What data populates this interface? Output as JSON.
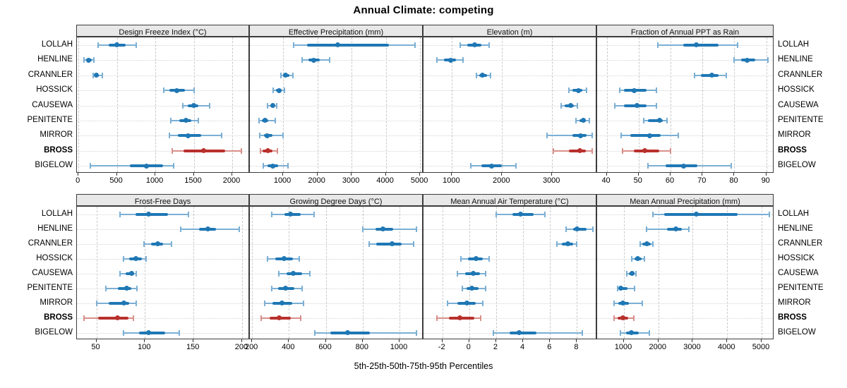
{
  "title": "Annual Climate: competing",
  "xlabel": "5th-25th-50th-75th-95th Percentiles",
  "sites": [
    "LOLLAH",
    "HENLINE",
    "CRANNLER",
    "HOSSICK",
    "CAUSEWA",
    "PENITENTE",
    "MIRROR",
    "BROSS",
    "BIGELOW"
  ],
  "highlight_site": "BROSS",
  "colors": {
    "normal": "#1f77b4",
    "normal_light": "#7bafd4",
    "highlight": "#b8302c",
    "highlight_light": "#d98f8a",
    "strip_bg": "#e8e8e8",
    "panel_border": "#3c3c3c",
    "grid": "#c9c9c9"
  },
  "chart_data": [
    {
      "type": "percentile-dotplot",
      "title": "Design Freeze Index (°C)",
      "row": 0,
      "col": 0,
      "xlim": [
        -20,
        2230
      ],
      "ticks": [
        0,
        500,
        1000,
        1500,
        2000
      ],
      "percentiles": [
        "5th",
        "25th",
        "50th",
        "75th",
        "95th"
      ],
      "values": [
        [
          260,
          390,
          500,
          610,
          750
        ],
        [
          70,
          100,
          135,
          170,
          200
        ],
        [
          190,
          210,
          235,
          265,
          310
        ],
        [
          1110,
          1180,
          1280,
          1385,
          1500
        ],
        [
          1360,
          1420,
          1500,
          1560,
          1710
        ],
        [
          1205,
          1310,
          1400,
          1465,
          1555
        ],
        [
          1180,
          1290,
          1430,
          1600,
          1865
        ],
        [
          1220,
          1370,
          1625,
          1910,
          2120
        ],
        [
          150,
          670,
          880,
          1100,
          1235
        ]
      ]
    },
    {
      "type": "percentile-dotplot",
      "title": "Effective Precipitation (mm)",
      "row": 0,
      "col": 1,
      "xlim": [
        30,
        5100
      ],
      "ticks": [
        1000,
        2000,
        3000,
        4000,
        5000
      ],
      "percentiles": [
        "5th",
        "25th",
        "50th",
        "75th",
        "95th"
      ],
      "values": [
        [
          1300,
          1700,
          2600,
          4100,
          4850
        ],
        [
          1560,
          1750,
          1900,
          2080,
          2350
        ],
        [
          930,
          1010,
          1080,
          1180,
          1280
        ],
        [
          710,
          790,
          885,
          960,
          1030
        ],
        [
          550,
          625,
          690,
          755,
          805
        ],
        [
          300,
          380,
          465,
          575,
          775
        ],
        [
          320,
          450,
          545,
          690,
          995
        ],
        [
          335,
          410,
          555,
          690,
          840
        ],
        [
          420,
          550,
          705,
          850,
          1140
        ]
      ]
    },
    {
      "type": "percentile-dotplot",
      "title": "Elevation (m)",
      "row": 0,
      "col": 2,
      "xlim": [
        430,
        3900
      ],
      "ticks": [
        1000,
        2000,
        3000
      ],
      "percentiles": [
        "5th",
        "25th",
        "50th",
        "75th",
        "95th"
      ],
      "values": [
        [
          1170,
          1310,
          1455,
          1580,
          1735
        ],
        [
          700,
          840,
          970,
          1075,
          1215
        ],
        [
          1485,
          1540,
          1610,
          1700,
          1775
        ],
        [
          3340,
          3400,
          3530,
          3610,
          3690
        ],
        [
          3175,
          3245,
          3375,
          3435,
          3505
        ],
        [
          3480,
          3545,
          3620,
          3680,
          3740
        ],
        [
          2905,
          3410,
          3575,
          3695,
          3795
        ],
        [
          3025,
          3330,
          3560,
          3670,
          3795
        ],
        [
          1380,
          1585,
          1785,
          1995,
          2280
        ]
      ]
    },
    {
      "type": "percentile-dotplot",
      "title": "Fraction of Annual PPT as Rain",
      "row": 0,
      "col": 3,
      "xlim": [
        37,
        92.5
      ],
      "ticks": [
        40,
        50,
        60,
        70,
        80,
        90
      ],
      "percentiles": [
        "5th",
        "25th",
        "50th",
        "75th",
        "95th"
      ],
      "values": [
        [
          56,
          64,
          68,
          75,
          81
        ],
        [
          80,
          82,
          84,
          86.5,
          90.5
        ],
        [
          67.5,
          69.5,
          73,
          75,
          77.5
        ],
        [
          44,
          45.5,
          48.5,
          52.5,
          55.5
        ],
        [
          42.5,
          45.5,
          49.5,
          52.5,
          55.5
        ],
        [
          51.5,
          53,
          56.5,
          57.5,
          59
        ],
        [
          44.5,
          47.5,
          53.5,
          57,
          62.5
        ],
        [
          45,
          48.5,
          52,
          56.5,
          60
        ],
        [
          53,
          58.5,
          64,
          68.5,
          79
        ]
      ]
    },
    {
      "type": "percentile-dotplot",
      "title": "Frost-Free Days",
      "row": 1,
      "col": 0,
      "xlim": [
        30,
        208
      ],
      "ticks": [
        50,
        100,
        150,
        200
      ],
      "percentiles": [
        "5th",
        "25th",
        "50th",
        "75th",
        "95th"
      ],
      "values": [
        [
          74,
          90,
          104,
          124,
          145
        ],
        [
          137,
          156,
          165,
          173,
          197
        ],
        [
          99,
          106,
          113,
          119,
          127
        ],
        [
          78,
          84,
          91,
          97,
          101
        ],
        [
          74,
          80,
          86,
          89,
          91
        ],
        [
          60,
          72,
          81,
          86,
          92
        ],
        [
          50,
          63,
          78,
          84,
          91
        ],
        [
          37,
          52,
          72,
          83,
          88
        ],
        [
          78,
          94,
          104,
          121,
          135
        ]
      ]
    },
    {
      "type": "percentile-dotplot",
      "title": "Growing Degree Days (°C)",
      "row": 1,
      "col": 1,
      "xlim": [
        188,
        1130
      ],
      "ticks": [
        200,
        400,
        600,
        800,
        1000
      ],
      "percentiles": [
        "5th",
        "25th",
        "50th",
        "75th",
        "95th"
      ],
      "values": [
        [
          305,
          375,
          410,
          465,
          535
        ],
        [
          800,
          870,
          910,
          965,
          1090
        ],
        [
          835,
          875,
          960,
          1010,
          1075
        ],
        [
          285,
          325,
          375,
          420,
          455
        ],
        [
          345,
          387,
          425,
          470,
          515
        ],
        [
          305,
          340,
          380,
          430,
          470
        ],
        [
          270,
          312,
          364,
          418,
          478
        ],
        [
          250,
          295,
          345,
          410,
          465
        ],
        [
          540,
          625,
          720,
          840,
          1090
        ]
      ]
    },
    {
      "type": "percentile-dotplot",
      "title": "Mean Annual Air Temperature (°C)",
      "row": 1,
      "col": 2,
      "xlim": [
        -3.4,
        9.5
      ],
      "ticks": [
        -2,
        0,
        2,
        4,
        6,
        8
      ],
      "percentiles": [
        "5th",
        "25th",
        "50th",
        "75th",
        "95th"
      ],
      "values": [
        [
          2.0,
          3.2,
          3.8,
          4.8,
          5.6
        ],
        [
          7.2,
          7.7,
          8.0,
          8.7,
          9.2
        ],
        [
          6.5,
          6.9,
          7.3,
          7.7,
          8.0
        ],
        [
          -0.6,
          -0.1,
          0.5,
          1.0,
          1.5
        ],
        [
          -0.9,
          -0.3,
          0.3,
          0.8,
          1.2
        ],
        [
          -0.5,
          -0.2,
          0.2,
          0.7,
          1.2
        ],
        [
          -1.6,
          -0.9,
          -0.2,
          0.5,
          1.0
        ],
        [
          -2.4,
          -1.5,
          -0.7,
          0.4,
          0.85
        ],
        [
          1.8,
          3.0,
          3.7,
          5.0,
          8.4
        ]
      ]
    },
    {
      "type": "percentile-dotplot",
      "title": "Mean Annual Precipitation (mm)",
      "row": 1,
      "col": 3,
      "xlim": [
        220,
        5370
      ],
      "ticks": [
        1000,
        2000,
        3000,
        4000,
        5000
      ],
      "percentiles": [
        "5th",
        "25th",
        "50th",
        "75th",
        "95th"
      ],
      "values": [
        [
          1850,
          2160,
          3100,
          4300,
          5225
        ],
        [
          1660,
          2260,
          2500,
          2690,
          2880
        ],
        [
          1475,
          1540,
          1660,
          1780,
          1850
        ],
        [
          1220,
          1300,
          1405,
          1510,
          1590
        ],
        [
          1080,
          1150,
          1230,
          1300,
          1340
        ],
        [
          810,
          860,
          910,
          1095,
          1315
        ],
        [
          720,
          840,
          975,
          1150,
          1530
        ],
        [
          705,
          810,
          960,
          1130,
          1290
        ],
        [
          890,
          1060,
          1220,
          1440,
          1745
        ]
      ]
    }
  ]
}
